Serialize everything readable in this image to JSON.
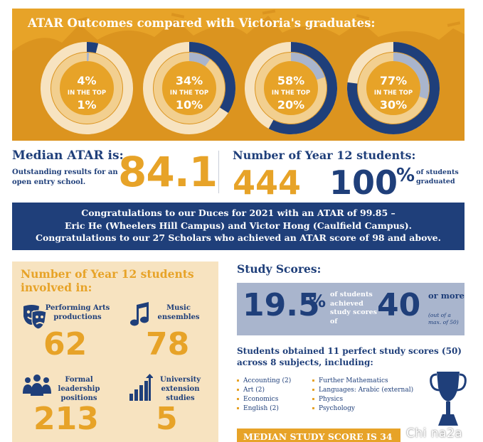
{
  "banner": {
    "title": "ATAR Outcomes compared with Victoria's graduates:",
    "rings": [
      {
        "pct": "4%",
        "middle": "IN THE TOP",
        "bottom": "1%",
        "school_share": 0.04,
        "state_share": 0.01
      },
      {
        "pct": "34%",
        "middle": "IN THE TOP",
        "bottom": "10%",
        "school_share": 0.34,
        "state_share": 0.1
      },
      {
        "pct": "58%",
        "middle": "IN THE TOP",
        "bottom": "20%",
        "school_share": 0.58,
        "state_share": 0.2
      },
      {
        "pct": "77%",
        "middle": "IN THE TOP",
        "bottom": "30%",
        "school_share": 0.77,
        "state_share": 0.3
      }
    ]
  },
  "median": {
    "title": "Median ATAR is:",
    "subtitle": "Outstanding results for an open entry school.",
    "value": "84.1"
  },
  "year12": {
    "title": "Number of Year 12 students:",
    "count": "444",
    "graduated_value": "100",
    "graduated_sign": "%",
    "graduated_label": "of students graduated"
  },
  "duces": {
    "line1": "Congratulations to our Duces for 2021 with an ATAR of 99.85 –",
    "line2": "Eric He (Wheelers Hill Campus) and Victor Hong (Caulfield Campus).",
    "line3": "Congratulations to our 27 Scholars who achieved an ATAR score of 98 and above."
  },
  "involvement": {
    "title": "Number of Year 12 students involved in:",
    "stats": [
      {
        "label": "Performing Arts productions",
        "value": "62",
        "icon": "theatre-masks-icon"
      },
      {
        "label": "Music ensembles",
        "value": "78",
        "icon": "music-note-icon"
      },
      {
        "label": "Formal leadership positions",
        "value": "213",
        "icon": "people-group-icon"
      },
      {
        "label": "University extension studies",
        "value": "5",
        "icon": "growth-chart-icon"
      }
    ]
  },
  "study_scores": {
    "title": "Study Scores:",
    "pct_value": "19.5",
    "pct_sign": "%",
    "description": "of students achieved study scores of",
    "threshold": "40",
    "or_more": "or more",
    "max_note": "(out of a max. of 50)",
    "perfect_text": "Students obtained 11 perfect study scores (50) across 8 subjects, including:",
    "subjects_col1": [
      "Accounting (2)",
      "Art (2)",
      "Economics",
      "English (2)"
    ],
    "subjects_col2": [
      "Further Mathematics",
      "Languages: Arabic (external)",
      "Physics",
      "Psychology"
    ],
    "median_study_score": "MEDIAN STUDY SCORE IS 34"
  },
  "watermark": "Chi na2a",
  "colors": {
    "navy": "#1f3f7a",
    "gold": "#e7a328",
    "cream": "#f7e3c0",
    "slate": "#a9b5cd"
  }
}
